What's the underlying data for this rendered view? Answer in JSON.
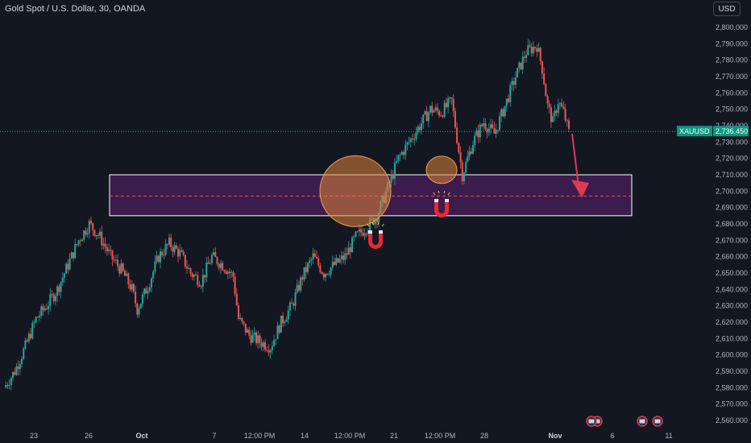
{
  "header": {
    "symbol_title": "Gold Spot / U.S. Dollar, 30, OANDA",
    "currency_button": "USD"
  },
  "colors": {
    "background": "#131722",
    "up_candle": "#26a69a",
    "down_candle": "#ef5350",
    "zone_fill": "#4a1f5c",
    "zone_border": "#ffffff",
    "zone_midline": "#e84c6a",
    "circle_fill": "#e0843a",
    "arrow": "#e03a52",
    "price_badge": "#089981",
    "magnet": "#e52936"
  },
  "chart_data": {
    "type": "line",
    "title": "Gold Spot / U.S. Dollar, 30, OANDA",
    "xlabel": "",
    "ylabel": "",
    "ylim": [
      2555,
      2805
    ],
    "y_ticks": [
      "2,800.000",
      "2,790.000",
      "2,780.000",
      "2,770.000",
      "2,760.000",
      "2,750.000",
      "2,740.000",
      "2,730.000",
      "2,720.000",
      "2,710.000",
      "2,700.000",
      "2,690.000",
      "2,680.000",
      "2,670.000",
      "2,660.000",
      "2,650.000",
      "2,640.000",
      "2,630.000",
      "2,620.000",
      "2,610.000",
      "2,600.000",
      "2,590.000",
      "2,580.000",
      "2,570.000",
      "2,560.000"
    ],
    "x_ticks": [
      {
        "label": "23",
        "bold": false
      },
      {
        "label": "26",
        "bold": false
      },
      {
        "label": "Oct",
        "bold": true
      },
      {
        "label": "7",
        "bold": false
      },
      {
        "label": "12:00 PM",
        "bold": false
      },
      {
        "label": "14",
        "bold": false
      },
      {
        "label": "12:00 PM",
        "bold": false
      },
      {
        "label": "21",
        "bold": false
      },
      {
        "label": "12:00 PM",
        "bold": false
      },
      {
        "label": "28",
        "bold": false
      },
      {
        "label": "Nov",
        "bold": true
      },
      {
        "label": "6",
        "bold": false
      },
      {
        "label": "11",
        "bold": false
      }
    ],
    "series": [
      {
        "name": "XAUUSD",
        "x_index": [
          0,
          2,
          4,
          6,
          8,
          10,
          12,
          14,
          16,
          18,
          20,
          22,
          24,
          25,
          27,
          29,
          31,
          33,
          35,
          37,
          39,
          41,
          43,
          44,
          46,
          48,
          50,
          52,
          54,
          56,
          58,
          60,
          62,
          64,
          66,
          68,
          70,
          72,
          74,
          76,
          78,
          80,
          82,
          84,
          86,
          88,
          90,
          92,
          94,
          96,
          98,
          100
        ],
        "values": [
          2580,
          2590,
          2605,
          2622,
          2630,
          2640,
          2655,
          2670,
          2680,
          2672,
          2660,
          2652,
          2640,
          2628,
          2642,
          2660,
          2668,
          2662,
          2650,
          2645,
          2660,
          2655,
          2648,
          2622,
          2612,
          2608,
          2605,
          2620,
          2630,
          2648,
          2660,
          2650,
          2655,
          2660,
          2672,
          2678,
          2685,
          2702,
          2720,
          2730,
          2740,
          2750,
          2748,
          2755,
          2710,
          2730,
          2742,
          2735,
          2752,
          2770,
          2785,
          2789
        ]
      }
    ],
    "last_price": {
      "label": "XAUUSD",
      "value": "2,736.450"
    },
    "annotations": {
      "zone": {
        "y_low": 2685,
        "y_high": 2710,
        "mid": 2697
      },
      "arrow": {
        "from": 2740,
        "to": 2700
      }
    },
    "grid": false,
    "legend": "none"
  }
}
